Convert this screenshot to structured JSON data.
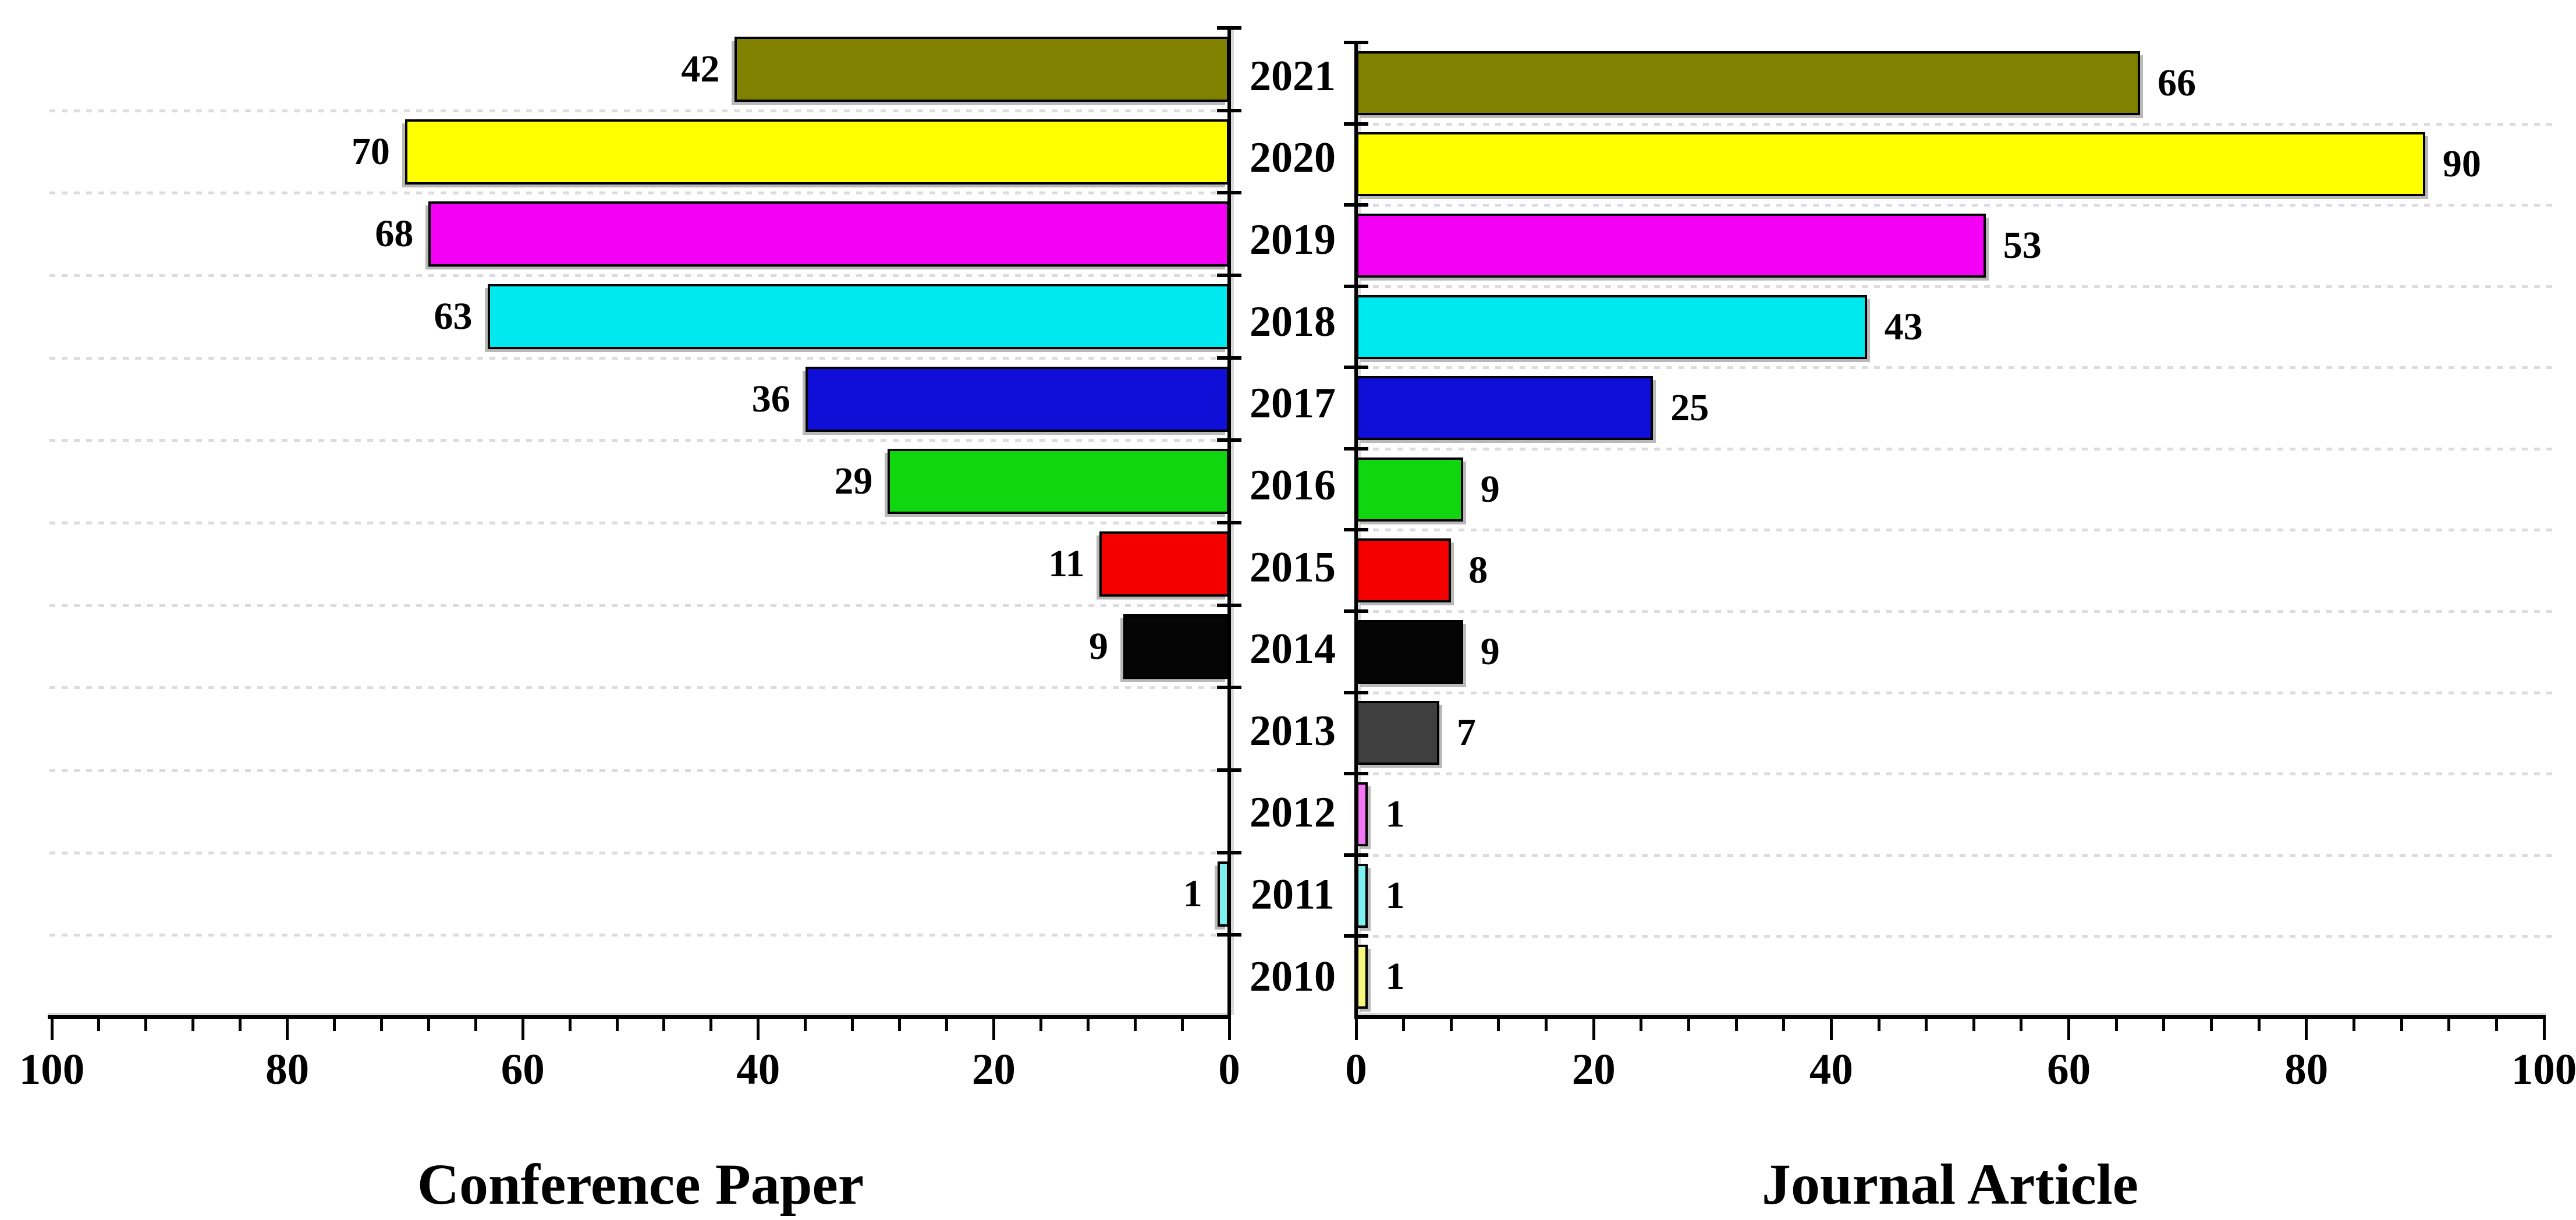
{
  "chart_data": {
    "type": "bar",
    "variant": "diverging-horizontal-pyramid",
    "categories": [
      "2021",
      "2020",
      "2019",
      "2018",
      "2017",
      "2016",
      "2015",
      "2014",
      "2013",
      "2012",
      "2011",
      "2010"
    ],
    "series": [
      {
        "name": "Conference Paper",
        "side": "left",
        "values": [
          42,
          70,
          68,
          63,
          36,
          29,
          11,
          9,
          null,
          null,
          1,
          null
        ]
      },
      {
        "name": "Journal Article",
        "side": "right",
        "values": [
          66,
          90,
          53,
          43,
          25,
          9,
          8,
          9,
          7,
          1,
          1,
          1
        ]
      }
    ],
    "bar_colors": [
      "#818100",
      "#ffff00",
      "#f400f4",
      "#00e9ef",
      "#0f0fd7",
      "#0fd60f",
      "#f40000",
      "#050505",
      "#3f3f3f",
      "#f277f2",
      "#7ff0f0",
      "#f7f77e"
    ],
    "value_labels_shown": true,
    "axes": {
      "left_panel_ticks": [
        100,
        80,
        60,
        40,
        20,
        0
      ],
      "right_panel_ticks": [
        0,
        20,
        40,
        60,
        80,
        100
      ],
      "minor_tick_step": 4,
      "max": 100,
      "grid": "dashed-horizontal"
    },
    "titles": {
      "left": "Conference Paper",
      "right": "Journal Article"
    },
    "legend_position": "none"
  },
  "styles": {
    "grid_color": "#dcdcdc",
    "axis_color": "#000000",
    "bar_border_color": "#000000",
    "shadow_color": "#b9b9b9",
    "text_color": "#000000",
    "background": "#ffffff"
  }
}
